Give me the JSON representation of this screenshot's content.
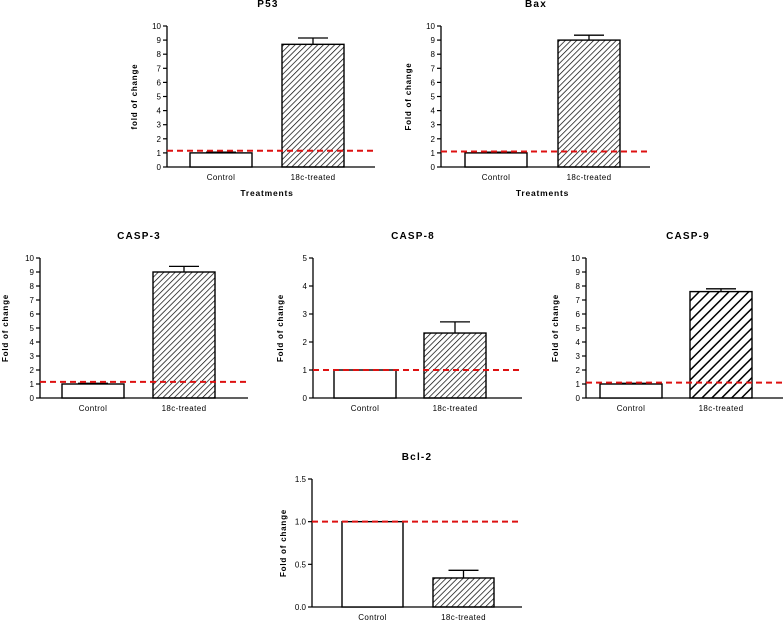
{
  "chart_data": [
    {
      "type": "bar",
      "title": "P53",
      "categories": [
        "Control",
        "18c-treated"
      ],
      "values": [
        1.0,
        8.7
      ],
      "errors": [
        0.05,
        0.45
      ],
      "xlabel": "Treatments",
      "ylabel": "fold of change",
      "ylim": [
        0,
        10
      ],
      "yticks": [
        "0",
        "1",
        "2",
        "3",
        "4",
        "5",
        "6",
        "7",
        "8",
        "9",
        "10"
      ],
      "reference_line": 1.15,
      "patterns": [
        "none",
        "hatch-dense"
      ]
    },
    {
      "type": "bar",
      "title": "Bax",
      "categories": [
        "Control",
        "18c-treated"
      ],
      "values": [
        1.0,
        9.0
      ],
      "errors": [
        0.05,
        0.35
      ],
      "xlabel": "Treatments",
      "ylabel": "Fold of change",
      "ylim": [
        0,
        10
      ],
      "yticks": [
        "0",
        "1",
        "2",
        "3",
        "4",
        "5",
        "6",
        "7",
        "8",
        "9",
        "10"
      ],
      "reference_line": 1.1,
      "patterns": [
        "none",
        "hatch-dense"
      ]
    },
    {
      "type": "bar",
      "title": "CASP-3",
      "categories": [
        "Control",
        "18c-treated"
      ],
      "values": [
        1.0,
        9.0
      ],
      "errors": [
        0.05,
        0.4
      ],
      "xlabel": "",
      "ylabel": "Fold of change",
      "ylim": [
        0,
        10
      ],
      "yticks": [
        "0",
        "1",
        "2",
        "3",
        "4",
        "5",
        "6",
        "7",
        "8",
        "9",
        "10"
      ],
      "reference_line": 1.15,
      "patterns": [
        "none",
        "hatch-dense"
      ]
    },
    {
      "type": "bar",
      "title": "CASP-8",
      "categories": [
        "Control",
        "18c-treated"
      ],
      "values": [
        1.0,
        2.32
      ],
      "errors": [
        0.0,
        0.4
      ],
      "xlabel": "",
      "ylabel": "Fold of change",
      "ylim": [
        0,
        5
      ],
      "yticks": [
        "0",
        "1",
        "2",
        "3",
        "4",
        "5"
      ],
      "reference_line": 1.0,
      "patterns": [
        "none",
        "hatch-dense"
      ]
    },
    {
      "type": "bar",
      "title": "CASP-9",
      "categories": [
        "Control",
        "18c-treated"
      ],
      "values": [
        1.0,
        7.6
      ],
      "errors": [
        0.05,
        0.2
      ],
      "xlabel": "",
      "ylabel": "Fold of change",
      "ylim": [
        0,
        10
      ],
      "yticks": [
        "0",
        "1",
        "2",
        "3",
        "4",
        "5",
        "6",
        "7",
        "8",
        "9",
        "10"
      ],
      "reference_line": 1.1,
      "patterns": [
        "none",
        "hatch-bold"
      ]
    },
    {
      "type": "bar",
      "title": "Bcl-2",
      "categories": [
        "Control",
        "18c-treated"
      ],
      "values": [
        1.0,
        0.34
      ],
      "errors": [
        0.0,
        0.09
      ],
      "xlabel": "",
      "ylabel": "Fold of change",
      "ylim": [
        0,
        1.5
      ],
      "yticks": [
        "0.0",
        "0.5",
        "1.0",
        "1.5"
      ],
      "reference_line": 1.0,
      "patterns": [
        "none",
        "hatch-dense"
      ]
    }
  ],
  "style": {
    "axis_color": "#000000",
    "reference_line_color": "#dd1111",
    "bar_fill": "#ffffff"
  }
}
